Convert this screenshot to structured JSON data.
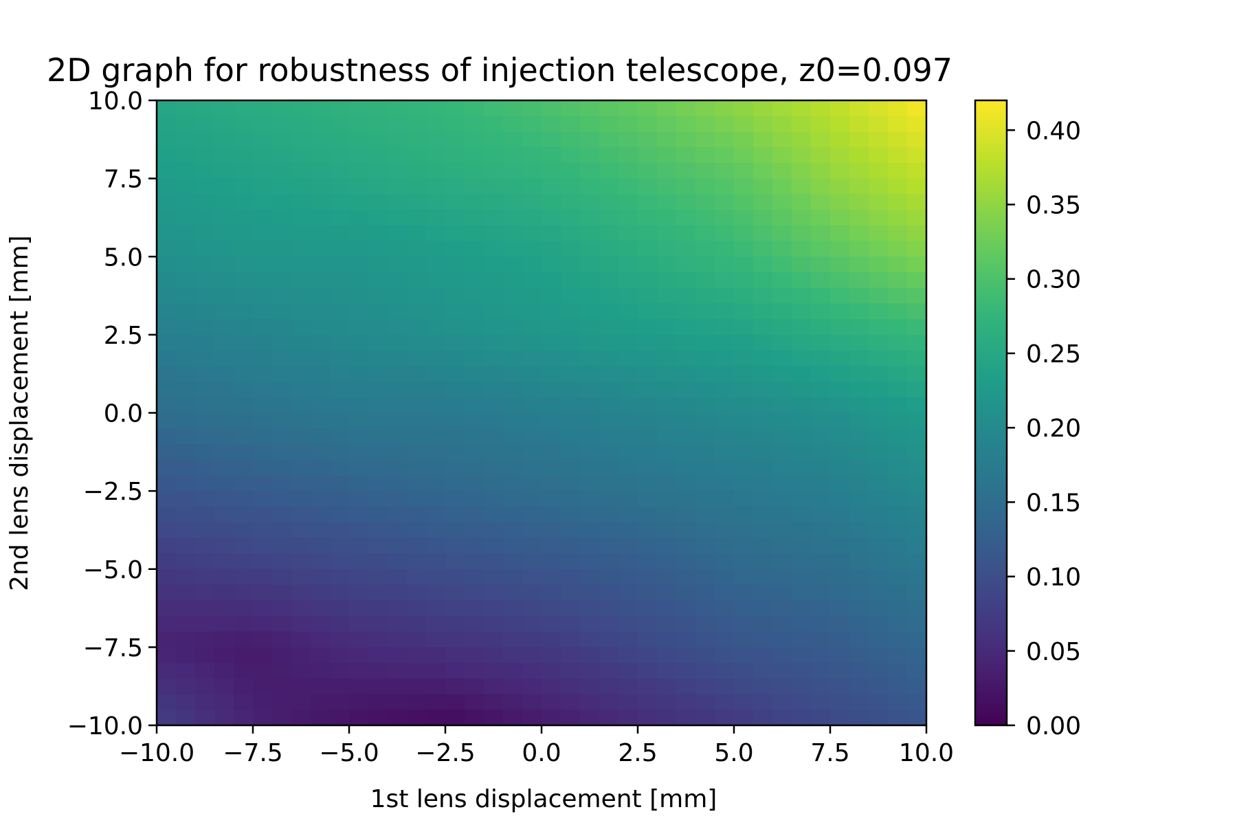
{
  "chart_data": {
    "type": "heatmap",
    "title": "2D graph for robustness of injection telescope, z0=0.097",
    "xlabel": "1st lens displacement [mm]",
    "ylabel": "2nd lens displacement [mm]",
    "xlim": [
      -10.0,
      10.0
    ],
    "ylim": [
      -10.0,
      10.0
    ],
    "x_ticks": [
      "−10.0",
      "−7.5",
      "−5.0",
      "−2.5",
      "0.0",
      "2.5",
      "5.0",
      "7.5",
      "10.0"
    ],
    "y_ticks": [
      "−10.0",
      "−7.5",
      "−5.0",
      "−2.5",
      "0.0",
      "2.5",
      "5.0",
      "7.5",
      "10.0"
    ],
    "colorbar": {
      "colormap": "viridis",
      "range": [
        0.0,
        0.42
      ],
      "ticks": [
        "0.00",
        "0.05",
        "0.10",
        "0.15",
        "0.20",
        "0.25",
        "0.30",
        "0.35",
        "0.40"
      ]
    },
    "grid": false,
    "x_values": [
      -10.0,
      -7.5,
      -5.0,
      -2.5,
      0.0,
      2.5,
      5.0,
      7.5,
      10.0
    ],
    "y_values": [
      -10.0,
      -7.5,
      -5.0,
      -2.5,
      0.0,
      2.5,
      5.0,
      7.5,
      10.0
    ],
    "z_values": [
      [
        0.08,
        0.04,
        0.02,
        0.01,
        0.03,
        0.05,
        0.07,
        0.09,
        0.11
      ],
      [
        0.04,
        0.03,
        0.05,
        0.06,
        0.07,
        0.09,
        0.11,
        0.12,
        0.14
      ],
      [
        0.07,
        0.08,
        0.09,
        0.1,
        0.11,
        0.12,
        0.14,
        0.15,
        0.17
      ],
      [
        0.11,
        0.12,
        0.13,
        0.14,
        0.15,
        0.16,
        0.17,
        0.18,
        0.2
      ],
      [
        0.15,
        0.16,
        0.17,
        0.17,
        0.18,
        0.19,
        0.2,
        0.21,
        0.23
      ],
      [
        0.18,
        0.19,
        0.2,
        0.21,
        0.22,
        0.23,
        0.24,
        0.26,
        0.28
      ],
      [
        0.21,
        0.22,
        0.22,
        0.23,
        0.24,
        0.26,
        0.28,
        0.31,
        0.34
      ],
      [
        0.23,
        0.24,
        0.25,
        0.26,
        0.27,
        0.29,
        0.31,
        0.35,
        0.38
      ],
      [
        0.25,
        0.26,
        0.27,
        0.28,
        0.3,
        0.32,
        0.35,
        0.38,
        0.42
      ]
    ]
  }
}
